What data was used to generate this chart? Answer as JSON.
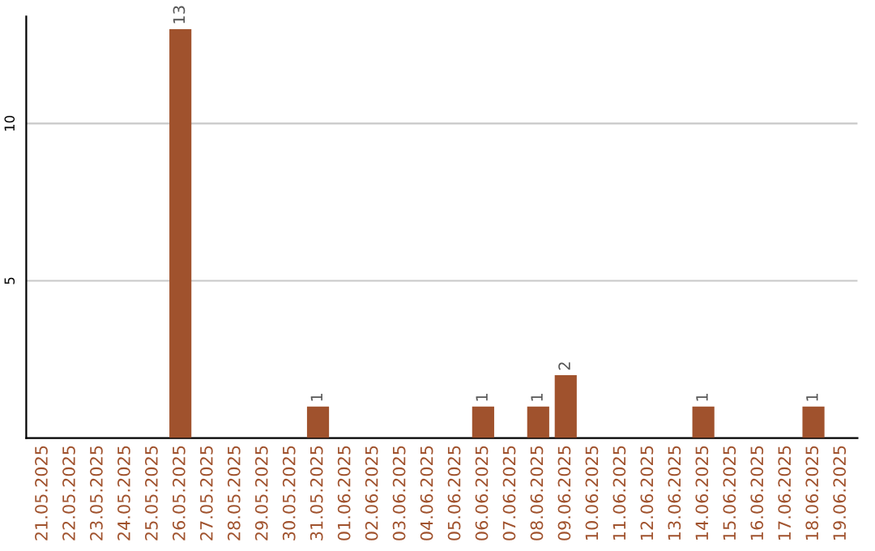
{
  "chart_data": {
    "type": "bar",
    "categories": [
      "21.05.2025",
      "22.05.2025",
      "23.05.2025",
      "24.05.2025",
      "25.05.2025",
      "26.05.2025",
      "27.05.2025",
      "28.05.2025",
      "29.05.2025",
      "30.05.2025",
      "31.05.2025",
      "01.06.2025",
      "02.06.2025",
      "03.06.2025",
      "04.06.2025",
      "05.06.2025",
      "06.06.2025",
      "07.06.2025",
      "08.06.2025",
      "09.06.2025",
      "10.06.2025",
      "11.06.2025",
      "12.06.2025",
      "13.06.2025",
      "14.06.2025",
      "15.06.2025",
      "16.06.2025",
      "17.06.2025",
      "18.06.2025",
      "19.06.2025"
    ],
    "values": [
      0,
      0,
      0,
      0,
      0,
      13,
      0,
      0,
      0,
      0,
      1,
      0,
      0,
      0,
      0,
      0,
      1,
      0,
      1,
      2,
      0,
      0,
      0,
      0,
      1,
      0,
      0,
      0,
      1,
      0
    ],
    "color": "#a0522d",
    "value_labels": [
      null,
      null,
      null,
      null,
      null,
      "13",
      null,
      null,
      null,
      null,
      "1",
      null,
      null,
      null,
      null,
      null,
      "1",
      null,
      "1",
      "2",
      null,
      null,
      null,
      null,
      "1",
      null,
      null,
      null,
      "1",
      null
    ],
    "ylim": [
      0,
      13.4
    ],
    "yticks": [
      5,
      10
    ],
    "grid": "y"
  }
}
